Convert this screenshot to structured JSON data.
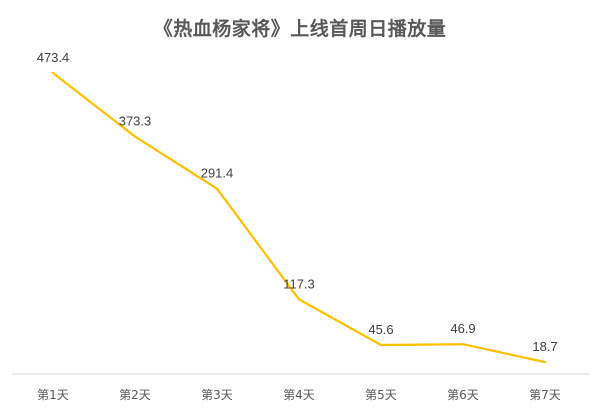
{
  "chart_data": {
    "type": "line",
    "title": "《热血杨家将》上线首周日播放量",
    "xlabel": "",
    "ylabel": "",
    "categories": [
      "第1天",
      "第2天",
      "第3天",
      "第4天",
      "第5天",
      "第6天",
      "第7天"
    ],
    "series": [
      {
        "values": [
          473.4,
          373.3,
          291.4,
          117.3,
          45.6,
          46.9,
          18.7
        ],
        "color": "#FFC000"
      }
    ],
    "ylim": [
      0,
      500
    ],
    "grid": false,
    "legend": "none",
    "data_labels": [
      "473.4",
      "373.3",
      "291.4",
      "117.3",
      "45.6",
      "46.9",
      "18.7"
    ]
  }
}
